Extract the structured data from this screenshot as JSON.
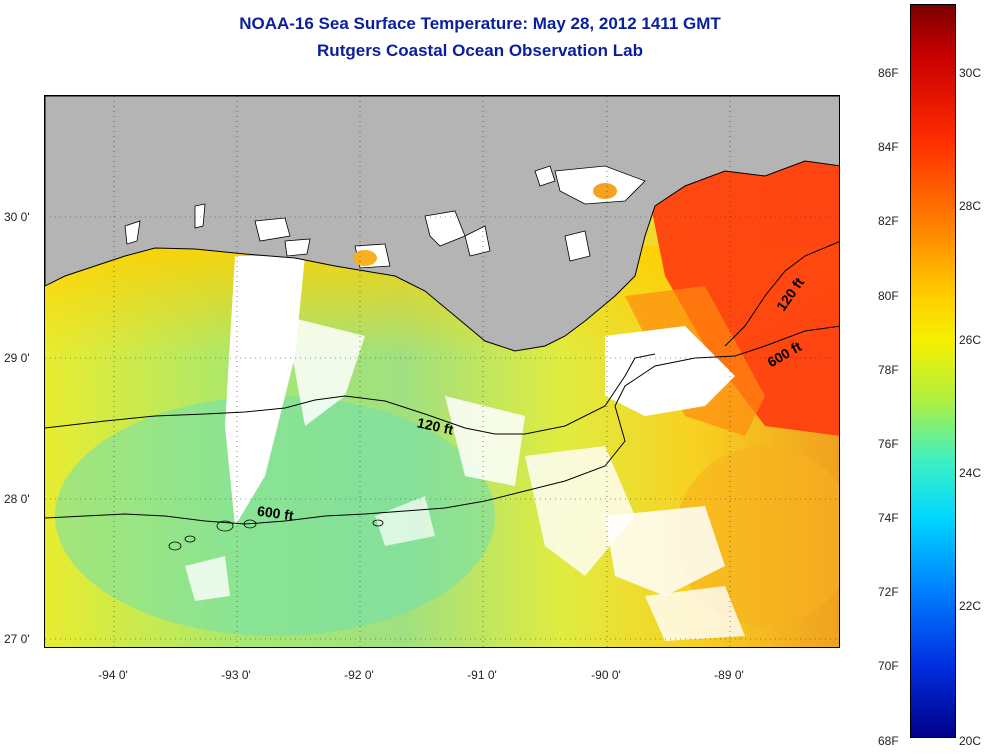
{
  "title": {
    "line1": "NOAA-16 Sea Surface Temperature:  May 28, 2012 1411 GMT",
    "line2": "Rutgers Coastal Ocean Observation Lab"
  },
  "lat_labels": [
    "30 0'",
    "29 0'",
    "28 0'",
    "27 0'"
  ],
  "lon_labels": [
    "-94 0'",
    "-93 0'",
    "-92 0'",
    "-91 0'",
    "-90 0'",
    "-89 0'"
  ],
  "contour_labels": {
    "shelf_120_west": "120 ft",
    "shelf_600_west": "600 ft",
    "shelf_120_east": "120 ft",
    "shelf_600_east": "600 ft"
  },
  "colorbar": {
    "fahrenheit": [
      "86F",
      "84F",
      "82F",
      "80F",
      "78F",
      "76F",
      "74F",
      "72F",
      "70F",
      "68F"
    ],
    "celsius": [
      "30C",
      "28C",
      "26C",
      "24C",
      "22C",
      "20C"
    ]
  },
  "colors": {
    "title": "#0a1f9c",
    "land": "#b4b4b4",
    "no_data": "#ffffff"
  }
}
